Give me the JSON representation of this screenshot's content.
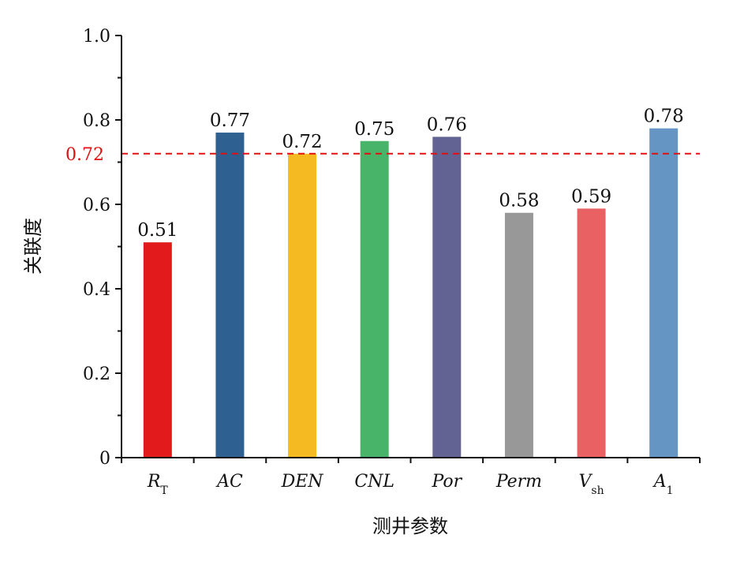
{
  "chart_data": {
    "type": "bar",
    "categories": [
      {
        "base": "R",
        "sub": "T"
      },
      {
        "base": "AC",
        "sub": ""
      },
      {
        "base": "DEN",
        "sub": ""
      },
      {
        "base": "CNL",
        "sub": ""
      },
      {
        "base": "Por",
        "sub": ""
      },
      {
        "base": "Perm",
        "sub": ""
      },
      {
        "base": "V",
        "sub": "sh"
      },
      {
        "base": "A",
        "sub": "1"
      }
    ],
    "values": [
      0.51,
      0.77,
      0.72,
      0.75,
      0.76,
      0.58,
      0.59,
      0.78
    ],
    "value_labels": [
      "0.51",
      "0.77",
      "0.72",
      "0.75",
      "0.76",
      "0.58",
      "0.59",
      "0.78"
    ],
    "colors": [
      "#e31a1c",
      "#2e6191",
      "#f5b921",
      "#47b46a",
      "#626393",
      "#989898",
      "#ea6163",
      "#6595c3"
    ],
    "xlabel": "测井参数",
    "ylabel": "关联度",
    "ylim": [
      0,
      1.0
    ],
    "yticks": [
      "0",
      "0.2",
      "0.4",
      "0.6",
      "0.8",
      "1.0"
    ],
    "reference_line": {
      "value": 0.72,
      "label": "0.72",
      "color": "#e01010"
    },
    "grid": false
  }
}
